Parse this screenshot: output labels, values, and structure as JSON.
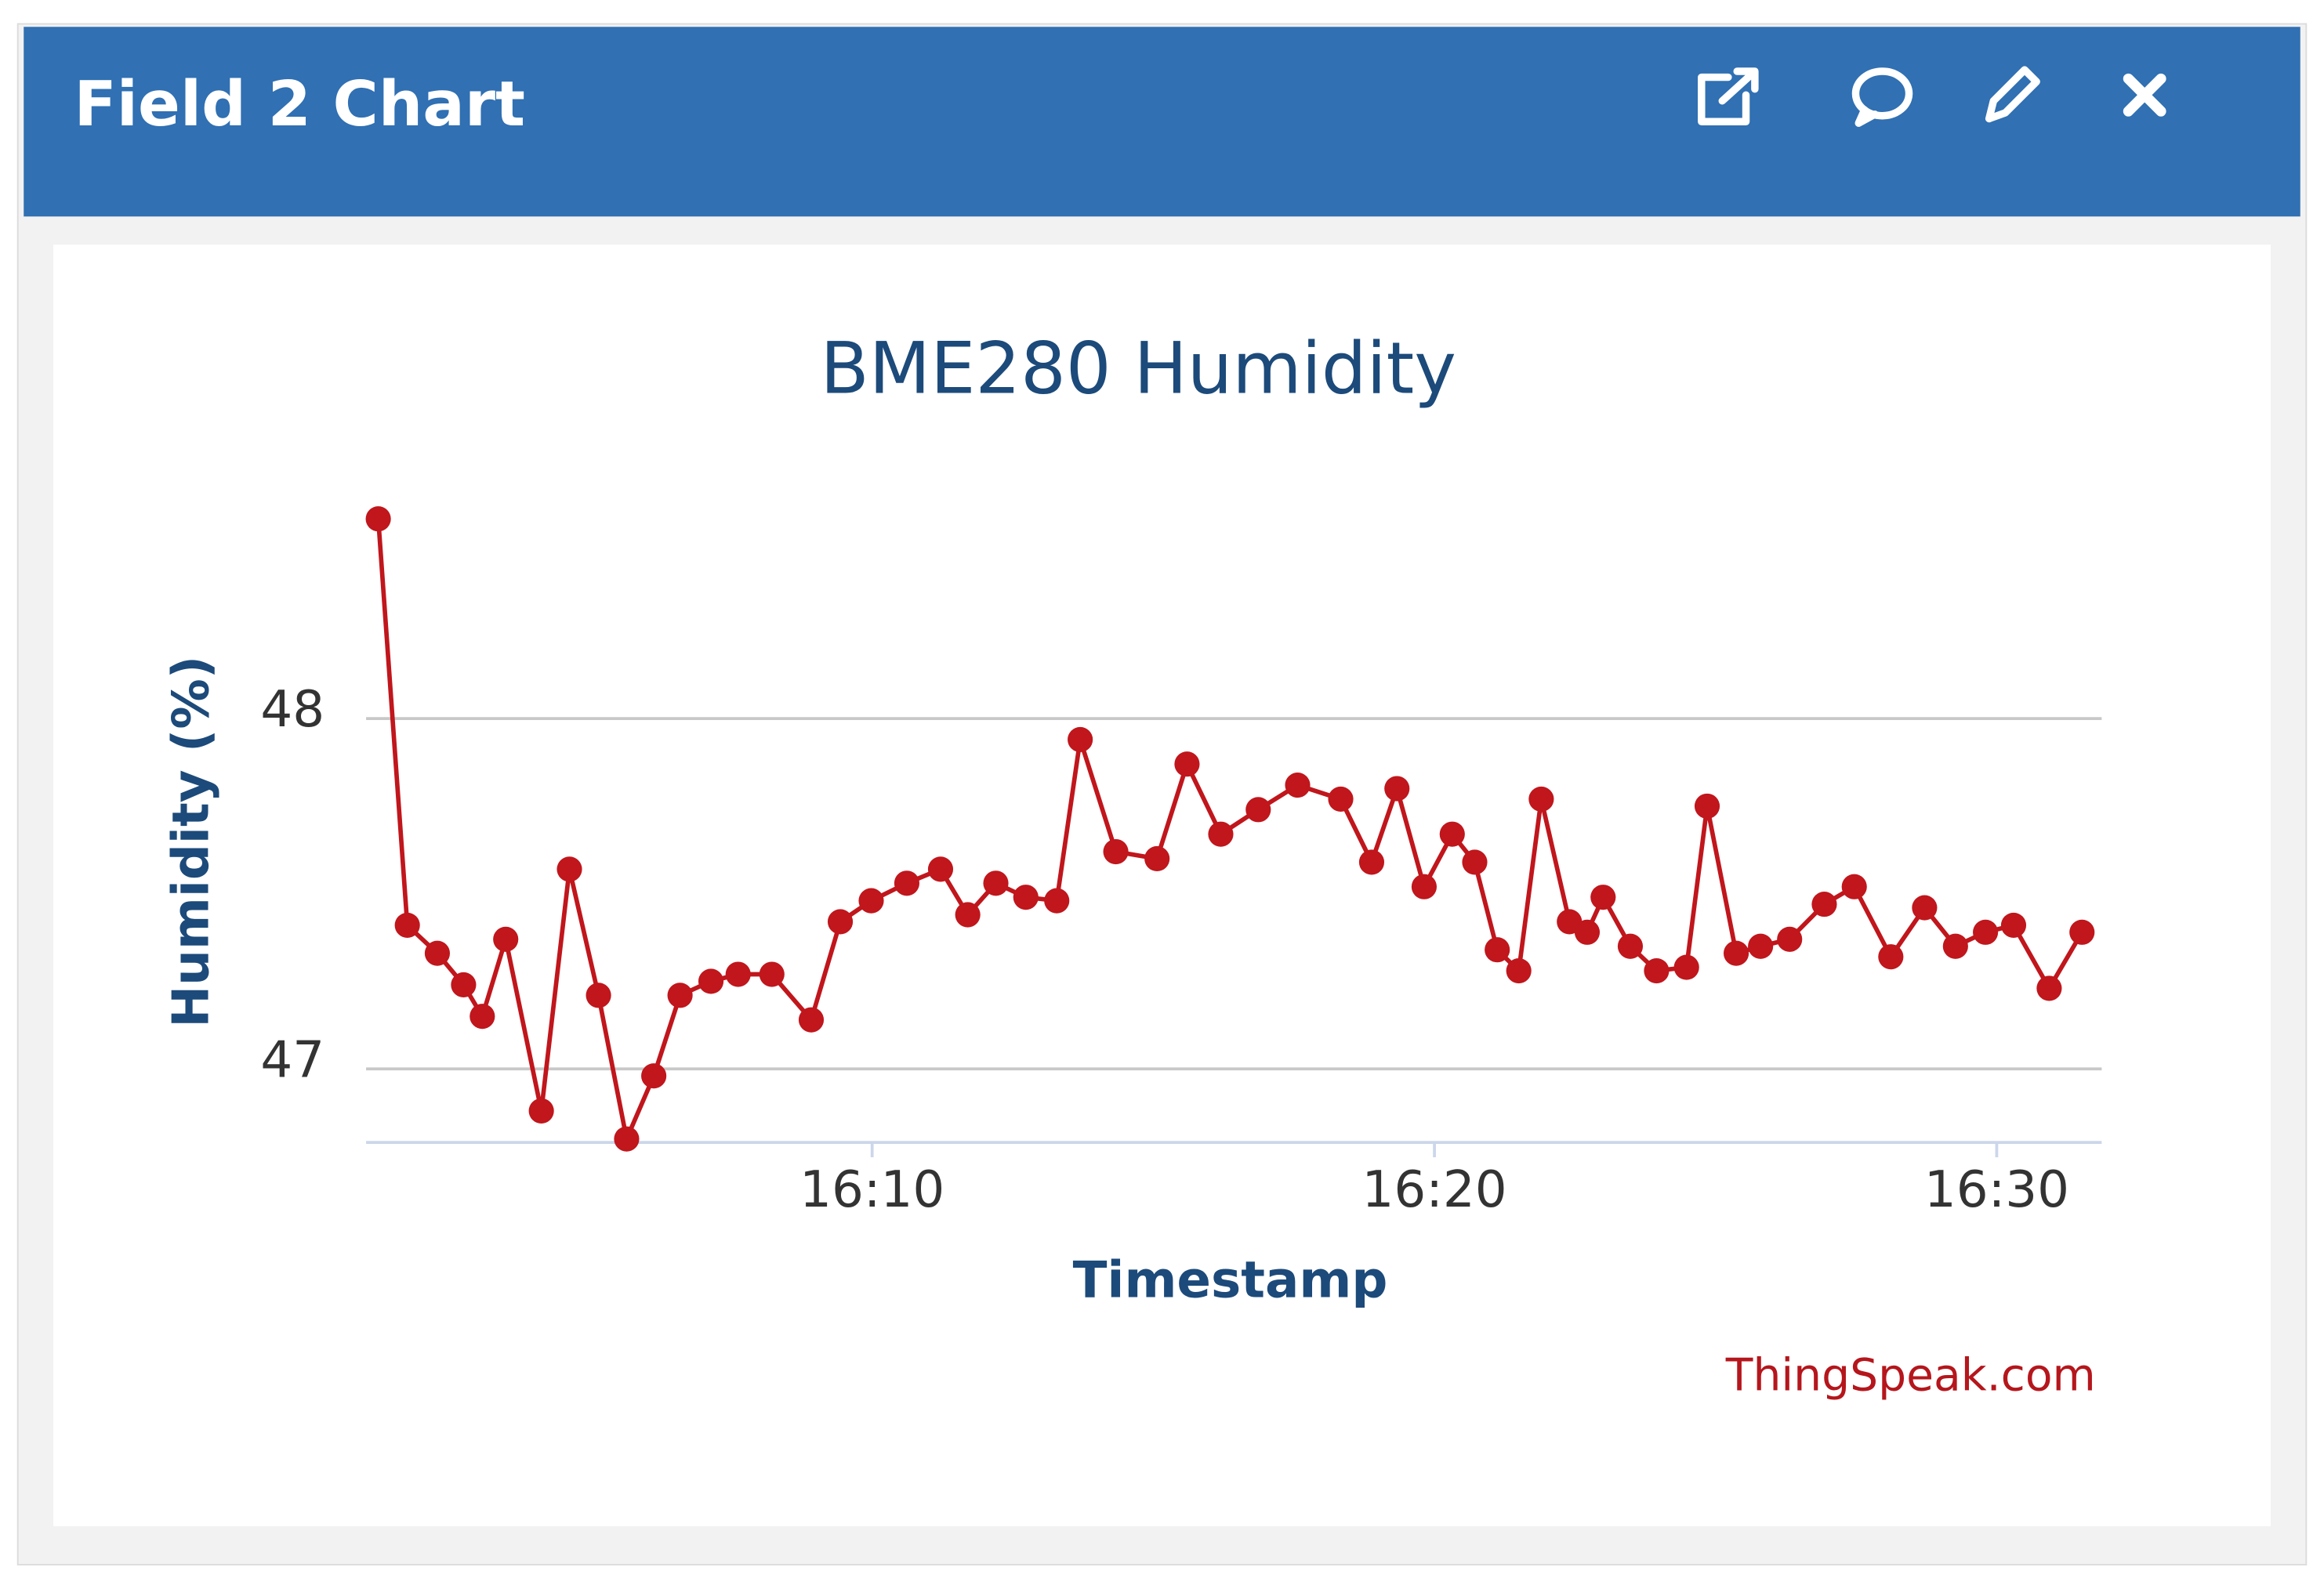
{
  "header": {
    "title": "Field 2 Chart"
  },
  "chart_data": {
    "type": "line",
    "title": "BME280 Humidity",
    "x_label": "Timestamp",
    "y_label": "Humidity (%)",
    "credit": "ThingSpeak.com",
    "x": [
      "16:01:13",
      "16:01:44",
      "16:02:16",
      "16:02:44",
      "16:03:04",
      "16:03:29",
      "16:04:07",
      "16:04:37",
      "16:05:08",
      "16:05:38",
      "16:06:07",
      "16:06:35",
      "16:07:08",
      "16:07:37",
      "16:08:13",
      "16:08:55",
      "16:09:26",
      "16:09:59",
      "16:10:37",
      "16:11:13",
      "16:11:42",
      "16:12:12",
      "16:12:44",
      "16:13:17",
      "16:13:42",
      "16:14:20",
      "16:15:04",
      "16:15:36",
      "16:16:12",
      "16:16:52",
      "16:17:34",
      "16:18:20",
      "16:18:53",
      "16:19:20",
      "16:19:49",
      "16:20:19",
      "16:20:43",
      "16:21:07",
      "16:21:30",
      "16:21:54",
      "16:22:24",
      "16:22:43",
      "16:23:00",
      "16:23:29",
      "16:23:57",
      "16:24:29",
      "16:24:51",
      "16:25:22",
      "16:25:48",
      "16:26:19",
      "16:26:56",
      "16:27:28",
      "16:28:07",
      "16:28:43",
      "16:29:16",
      "16:29:48",
      "16:30:18",
      "16:30:56",
      "16:31:31"
    ],
    "series": [
      {
        "name": "Humidity",
        "color": "#c0161c",
        "values": [
          48.57,
          47.41,
          47.33,
          47.24,
          47.15,
          47.37,
          46.88,
          47.57,
          47.21,
          46.8,
          46.98,
          47.21,
          47.25,
          47.27,
          47.27,
          47.14,
          47.42,
          47.48,
          47.53,
          47.57,
          47.44,
          47.53,
          47.49,
          47.48,
          47.94,
          47.62,
          47.6,
          47.87,
          47.67,
          47.74,
          47.81,
          47.77,
          47.59,
          47.8,
          47.52,
          47.67,
          47.59,
          47.34,
          47.28,
          47.77,
          47.42,
          47.39,
          47.49,
          47.35,
          47.28,
          47.29,
          47.75,
          47.33,
          47.35,
          47.37,
          47.47,
          47.52,
          47.32,
          47.46,
          47.35,
          47.39,
          47.41,
          47.23,
          47.39
        ]
      }
    ],
    "xlim": [
      "16:01:00",
      "16:31:52"
    ],
    "xticks": [
      "16:10",
      "16:20",
      "16:30"
    ],
    "ylim": [
      46.79,
      48.6
    ],
    "yticks": [
      47,
      48
    ],
    "grid": true
  }
}
